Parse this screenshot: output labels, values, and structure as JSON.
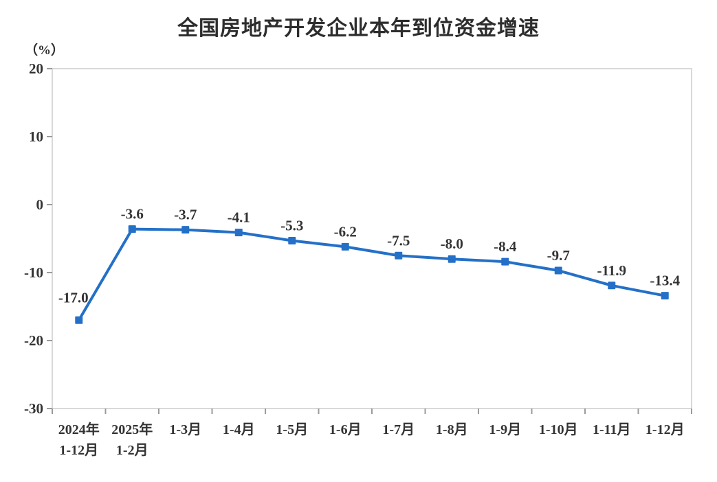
{
  "chart_data": {
    "type": "line",
    "title": "全国房地产开发企业本年到位资金增速",
    "unit_label": "（%）",
    "categories": [
      [
        "2024年",
        "1-12月"
      ],
      [
        "2025年",
        "1-2月"
      ],
      [
        "1-3月"
      ],
      [
        "1-4月"
      ],
      [
        "1-5月"
      ],
      [
        "1-6月"
      ],
      [
        "1-7月"
      ],
      [
        "1-8月"
      ],
      [
        "1-9月"
      ],
      [
        "1-10月"
      ],
      [
        "1-11月"
      ],
      [
        "1-12月"
      ]
    ],
    "values": [
      -17.0,
      -3.6,
      -3.7,
      -4.1,
      -5.3,
      -6.2,
      -7.5,
      -8.0,
      -8.4,
      -9.7,
      -11.9,
      -13.4
    ],
    "point_labels": [
      "-17.0",
      "-3.6",
      "-3.7",
      "-4.1",
      "-5.3",
      "-6.2",
      "-7.5",
      "-8.0",
      "-8.4",
      "-9.7",
      "-11.9",
      "-13.4"
    ],
    "ylim": [
      -30,
      20
    ],
    "yticks": [
      "20",
      "10",
      "0",
      "-10",
      "-20",
      "-30"
    ],
    "grid": false,
    "legend_position": "none",
    "marker": "square",
    "line_color": "#2470C8",
    "plot_border_color": "#d9d9d9",
    "tick_color": "#9b9b9b",
    "text_color": "#333333",
    "background_color": "#ffffff"
  }
}
